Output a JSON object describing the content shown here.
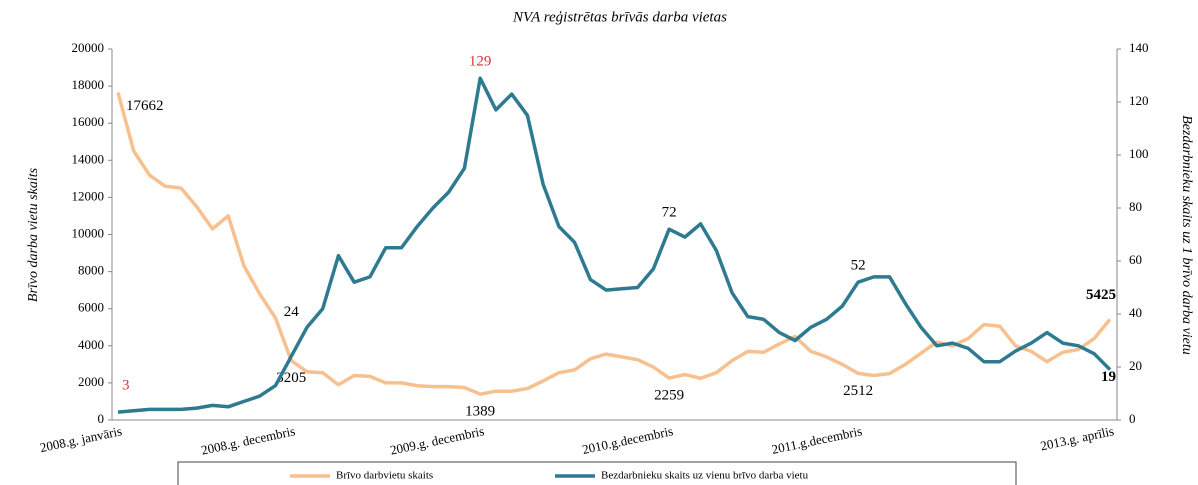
{
  "chart_data": {
    "type": "line",
    "title": "NVA reģistrētas brīvās darba vietas",
    "y_label": "Brīvo darba vietu skaits",
    "y2_label": "Bezdarbnieku skaits uz 1 brīvo darba vietu",
    "categories": [
      "2008.g. janvāris",
      null,
      null,
      null,
      null,
      null,
      null,
      null,
      null,
      null,
      null,
      "2008.g. decembris",
      null,
      null,
      null,
      null,
      null,
      null,
      null,
      null,
      null,
      null,
      null,
      "2009.g. decembris",
      null,
      null,
      null,
      null,
      null,
      null,
      null,
      null,
      null,
      null,
      null,
      "2010.g.decembris",
      null,
      null,
      null,
      null,
      null,
      null,
      null,
      null,
      null,
      null,
      null,
      "2011.g.decembris",
      null,
      null,
      null,
      null,
      null,
      null,
      null,
      null,
      null,
      null,
      null,
      null,
      null,
      null,
      null,
      "2013.g. aprīlis"
    ],
    "series": [
      {
        "name": "Brīvo darbvietu skaits",
        "color": "#f7c08f",
        "axis": "y",
        "values": [
          17662,
          14500,
          13200,
          12600,
          12500,
          11500,
          10300,
          11000,
          8300,
          6800,
          5500,
          3205,
          2600,
          2550,
          1900,
          2400,
          2350,
          2000,
          2000,
          1850,
          1800,
          1800,
          1750,
          1389,
          1550,
          1550,
          1700,
          2100,
          2550,
          2700,
          3300,
          3550,
          3400,
          3250,
          2850,
          2259,
          2450,
          2250,
          2550,
          3200,
          3700,
          3650,
          4100,
          4500,
          3700,
          3400,
          3000,
          2512,
          2400,
          2500,
          3000,
          3600,
          4200,
          4000,
          4400,
          5150,
          5050,
          4000,
          3700,
          3150,
          3650,
          3800,
          4400,
          5425
        ],
        "value_labels": [
          "17662",
          null,
          null,
          null,
          null,
          null,
          null,
          null,
          null,
          null,
          null,
          "3205",
          null,
          null,
          null,
          null,
          null,
          null,
          null,
          null,
          null,
          null,
          null,
          "1389",
          null,
          null,
          null,
          null,
          null,
          null,
          null,
          null,
          null,
          null,
          null,
          "2259",
          null,
          null,
          null,
          null,
          null,
          null,
          null,
          null,
          null,
          null,
          null,
          "2512",
          null,
          null,
          null,
          null,
          null,
          null,
          null,
          null,
          null,
          null,
          null,
          null,
          null,
          null,
          null,
          "5425"
        ]
      },
      {
        "name": "Bezdarbnieku skaits uz vienu brīvo darba vietu",
        "color": "#2e7a90",
        "axis": "y2",
        "values": [
          3,
          3.5,
          4,
          4,
          4,
          4.5,
          5.5,
          5,
          7,
          9,
          13,
          24,
          35,
          42,
          62,
          52,
          54,
          65,
          65,
          73,
          80,
          86,
          95,
          129,
          117,
          123,
          115,
          89,
          73,
          67,
          53,
          49,
          49.5,
          50,
          57,
          72,
          69,
          74,
          64,
          48,
          39,
          38,
          33,
          30,
          35,
          38,
          43,
          52,
          54,
          54,
          44,
          35,
          28,
          29,
          27,
          22,
          22,
          26,
          29,
          33,
          29,
          28,
          25,
          19
        ],
        "value_labels": [
          "3",
          null,
          null,
          null,
          null,
          null,
          null,
          null,
          null,
          null,
          null,
          "24",
          null,
          null,
          null,
          null,
          null,
          null,
          null,
          null,
          null,
          null,
          null,
          "129",
          null,
          null,
          null,
          null,
          null,
          null,
          null,
          null,
          null,
          null,
          null,
          "72",
          null,
          null,
          null,
          null,
          null,
          null,
          null,
          null,
          null,
          null,
          null,
          "52",
          null,
          null,
          null,
          null,
          null,
          null,
          null,
          null,
          null,
          null,
          null,
          null,
          null,
          null,
          null,
          "19"
        ]
      }
    ],
    "ylim": [
      0,
      20000
    ],
    "yticks": [
      0,
      2000,
      4000,
      6000,
      8000,
      10000,
      12000,
      14000,
      16000,
      18000,
      20000
    ],
    "y2lim": [
      0,
      140
    ],
    "y2ticks": [
      0,
      20,
      40,
      60,
      80,
      100,
      120,
      140
    ]
  }
}
